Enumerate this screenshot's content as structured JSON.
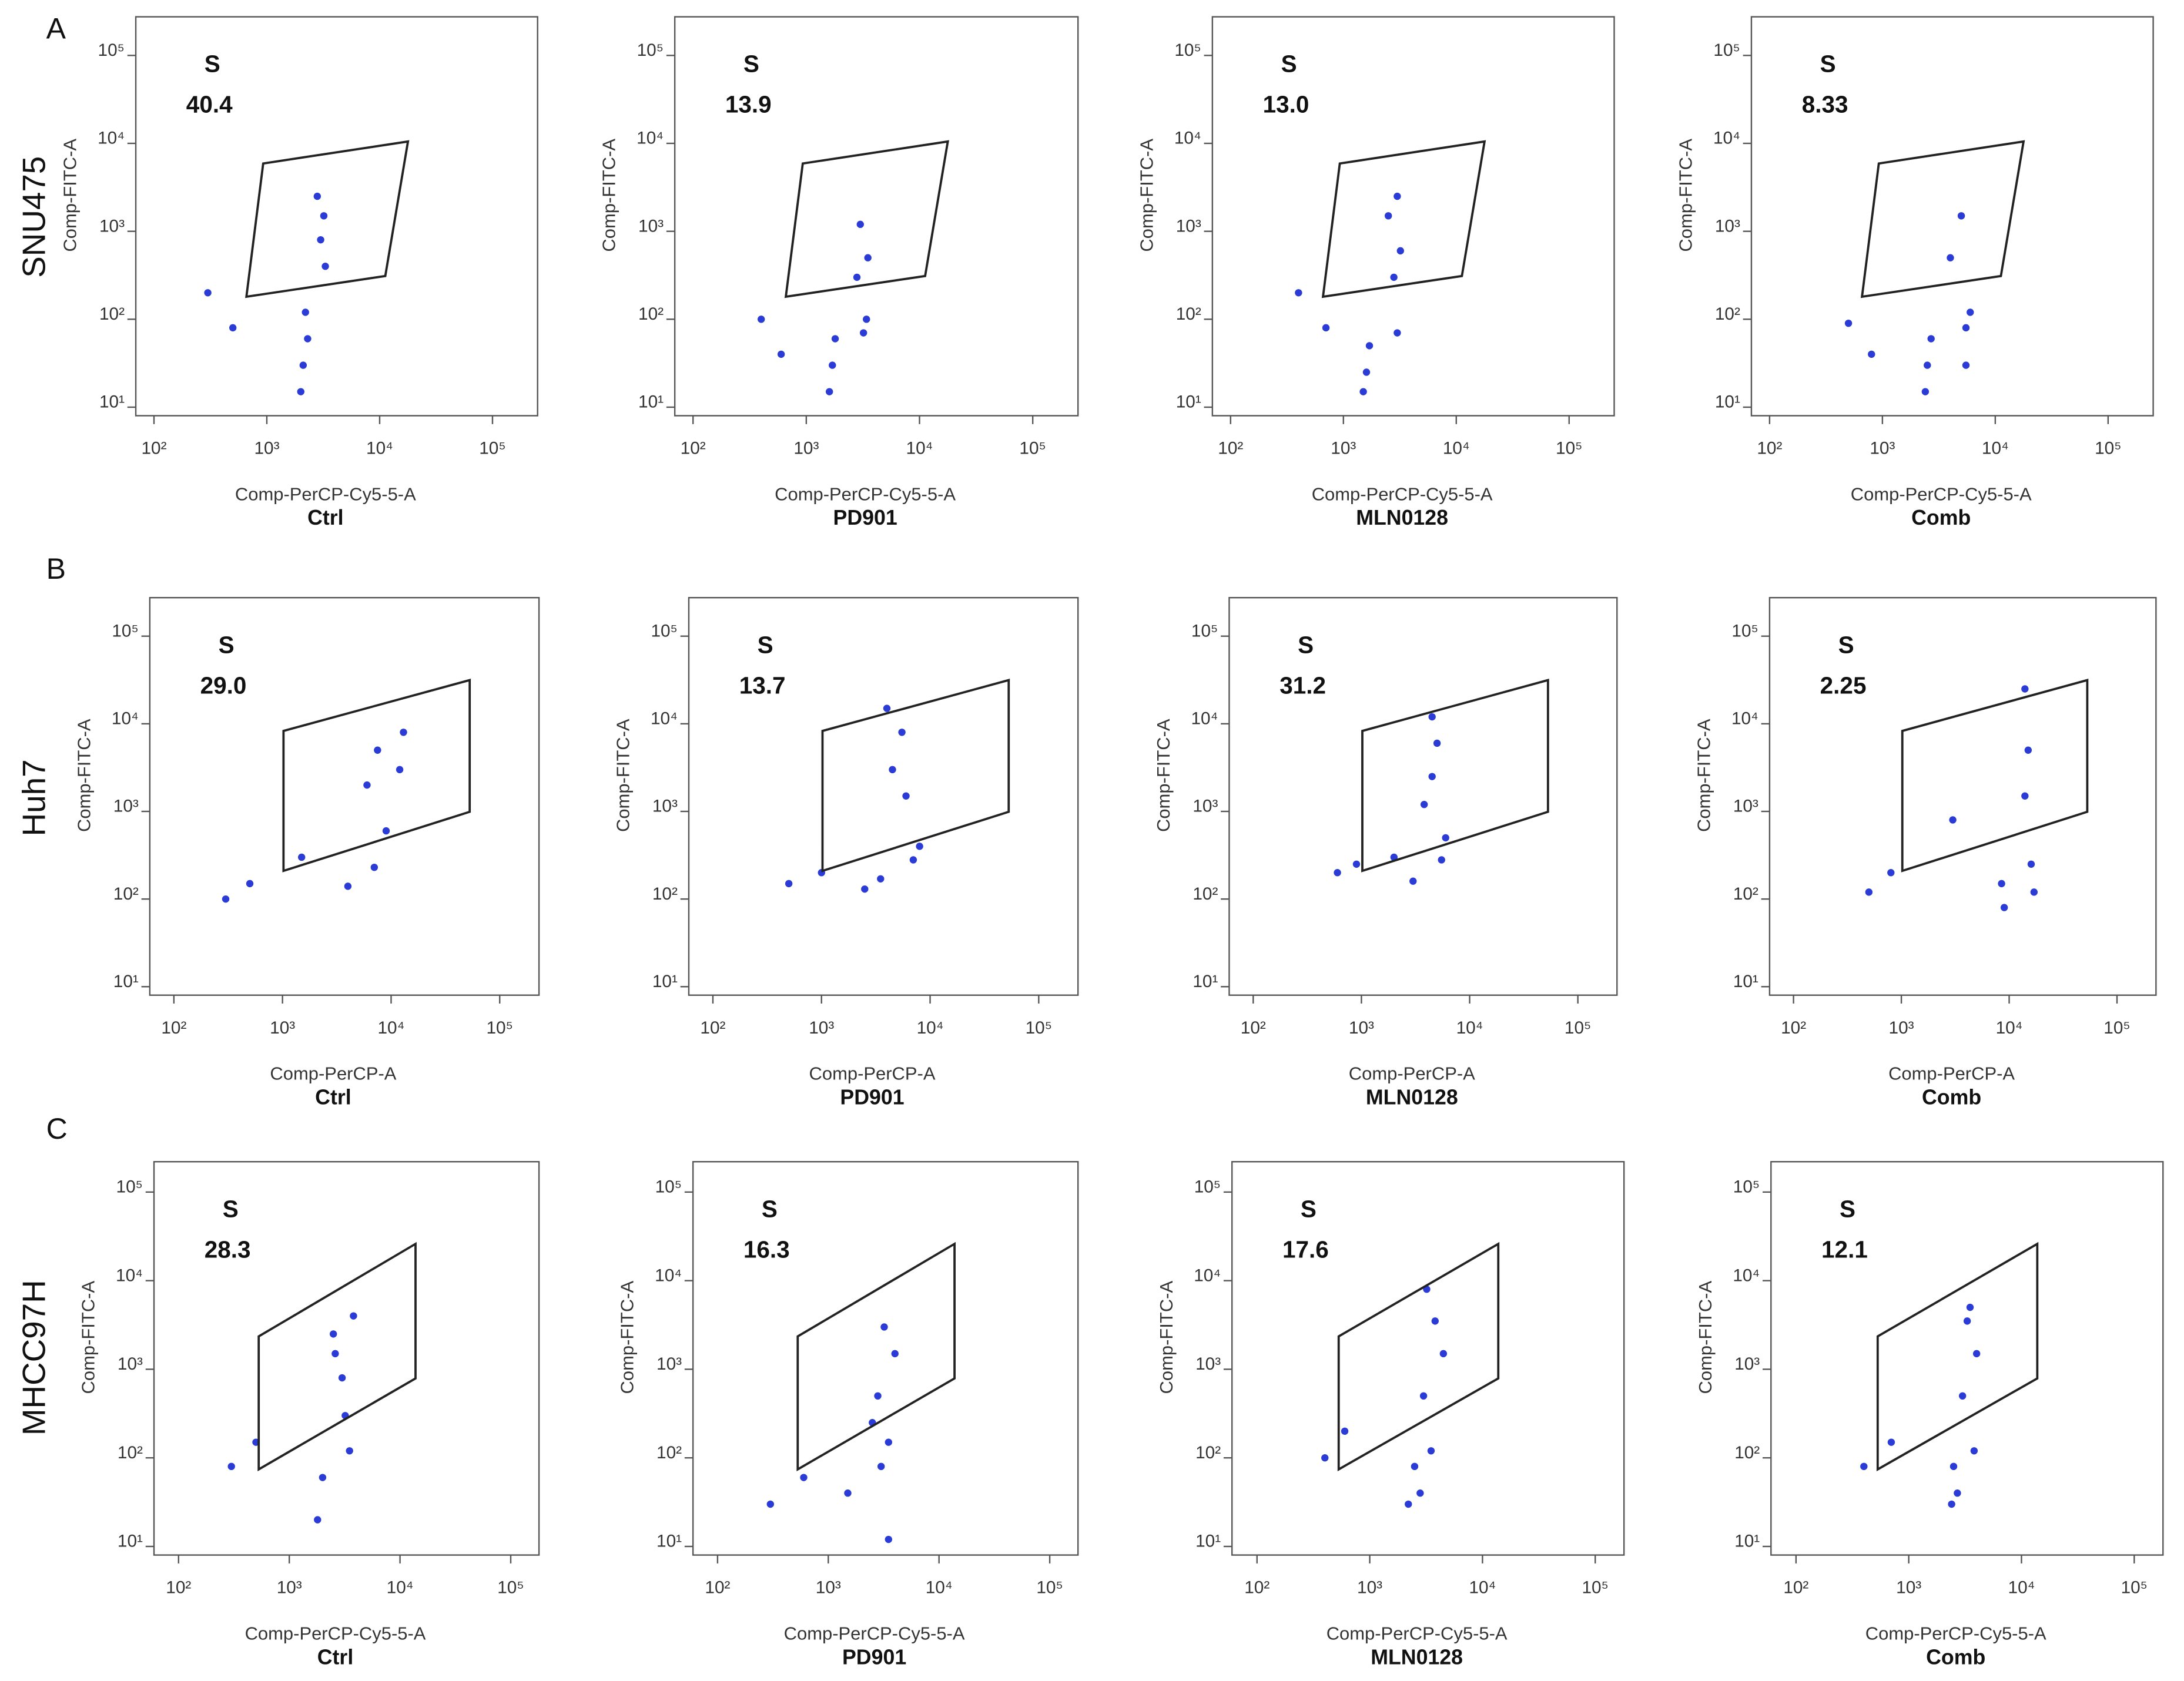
{
  "figure_labels": [
    {
      "letter": "A",
      "name": "SNU475"
    },
    {
      "letter": "B",
      "name": "Huh7"
    },
    {
      "letter": "C",
      "name": "MHCC97H"
    }
  ],
  "chart_data": [
    {
      "type": "scatter",
      "title": "Ctrl",
      "xlabel": "Comp-PerCP-Cy5-5-A",
      "ylabel": "Comp-FITC-A",
      "xscale": "log",
      "yscale": "log",
      "color": "#2a3bd6",
      "xlim": [
        69,
        251000
      ],
      "ylim": [
        8,
        275000
      ],
      "xticks": [
        {
          "value": 100,
          "label": "10²"
        },
        {
          "value": 1000,
          "label": "10³"
        },
        {
          "value": 10000,
          "label": "10⁴"
        },
        {
          "value": 100000,
          "label": "10⁵"
        }
      ],
      "yticks": [
        {
          "value": 10,
          "label": "10¹"
        },
        {
          "value": 100,
          "label": "10²"
        },
        {
          "value": 1000,
          "label": "10³"
        },
        {
          "value": 10000,
          "label": "10⁴"
        },
        {
          "value": 100000,
          "label": "10⁵"
        }
      ],
      "gate": {
        "name": "S",
        "value": 40.4,
        "x": [
          660,
          930,
          17800,
          11200
        ],
        "y": [
          180,
          5900,
          10500,
          310
        ]
      },
      "x": [
        2100,
        2300,
        2200,
        3000,
        3200,
        2800,
        3300,
        2000,
        500,
        300
      ],
      "y": [
        30,
        60,
        120,
        800,
        1500,
        2500,
        400,
        15,
        80,
        200
      ]
    },
    {
      "type": "scatter",
      "title": "PD901",
      "xlabel": "Comp-PerCP-Cy5-5-A",
      "ylabel": "Comp-FITC-A",
      "xscale": "log",
      "yscale": "log",
      "color": "#2a3bd6",
      "xlim": [
        69,
        251000
      ],
      "ylim": [
        8,
        275000
      ],
      "xticks": [
        {
          "value": 100,
          "label": "10²"
        },
        {
          "value": 1000,
          "label": "10³"
        },
        {
          "value": 10000,
          "label": "10⁴"
        },
        {
          "value": 100000,
          "label": "10⁵"
        }
      ],
      "yticks": [
        {
          "value": 10,
          "label": "10¹"
        },
        {
          "value": 100,
          "label": "10²"
        },
        {
          "value": 1000,
          "label": "10³"
        },
        {
          "value": 10000,
          "label": "10⁴"
        },
        {
          "value": 100000,
          "label": "10⁵"
        }
      ],
      "gate": {
        "name": "S",
        "value": 13.9,
        "x": [
          660,
          930,
          17800,
          11200
        ],
        "y": [
          180,
          5900,
          10500,
          310
        ]
      },
      "x": [
        1700,
        1800,
        3200,
        3500,
        3000,
        2800,
        1600,
        600,
        400,
        3400
      ],
      "y": [
        30,
        60,
        70,
        500,
        1200,
        300,
        15,
        40,
        100,
        100
      ]
    },
    {
      "type": "scatter",
      "title": "MLN0128",
      "xlabel": "Comp-PerCP-Cy5-5-A",
      "ylabel": "Comp-FITC-A",
      "xscale": "log",
      "yscale": "log",
      "color": "#2a3bd6",
      "xlim": [
        69,
        251000
      ],
      "ylim": [
        8,
        275000
      ],
      "xticks": [
        {
          "value": 100,
          "label": "10²"
        },
        {
          "value": 1000,
          "label": "10³"
        },
        {
          "value": 10000,
          "label": "10⁴"
        },
        {
          "value": 100000,
          "label": "10⁵"
        }
      ],
      "yticks": [
        {
          "value": 10,
          "label": "10¹"
        },
        {
          "value": 100,
          "label": "10²"
        },
        {
          "value": 1000,
          "label": "10³"
        },
        {
          "value": 10000,
          "label": "10⁴"
        },
        {
          "value": 100000,
          "label": "10⁵"
        }
      ],
      "gate": {
        "name": "S",
        "value": 13,
        "value_label": "13.0",
        "x": [
          660,
          930,
          17800,
          11200
        ],
        "y": [
          180,
          5900,
          10500,
          310
        ]
      },
      "x": [
        1600,
        1700,
        3000,
        3200,
        2500,
        3000,
        1500,
        700,
        400,
        2800
      ],
      "y": [
        25,
        50,
        70,
        600,
        1500,
        2500,
        15,
        80,
        200,
        300
      ]
    },
    {
      "type": "scatter",
      "title": "Comb",
      "xlabel": "Comp-PerCP-Cy5-5-A",
      "ylabel": "Comp-FITC-A",
      "xscale": "log",
      "yscale": "log",
      "color": "#2a3bd6",
      "xlim": [
        69,
        251000
      ],
      "ylim": [
        8,
        275000
      ],
      "xticks": [
        {
          "value": 100,
          "label": "10²"
        },
        {
          "value": 1000,
          "label": "10³"
        },
        {
          "value": 10000,
          "label": "10⁴"
        },
        {
          "value": 100000,
          "label": "10⁵"
        }
      ],
      "yticks": [
        {
          "value": 10,
          "label": "10¹"
        },
        {
          "value": 100,
          "label": "10²"
        },
        {
          "value": 1000,
          "label": "10³"
        },
        {
          "value": 10000,
          "label": "10⁴"
        },
        {
          "value": 100000,
          "label": "10⁵"
        }
      ],
      "gate": {
        "name": "S",
        "value": 8.33,
        "x": [
          660,
          930,
          17800,
          11200
        ],
        "y": [
          180,
          5900,
          10500,
          310
        ]
      },
      "x": [
        2500,
        2700,
        5500,
        6000,
        4000,
        5000,
        2400,
        800,
        500,
        5500
      ],
      "y": [
        30,
        60,
        80,
        120,
        500,
        1500,
        15,
        40,
        90,
        30
      ]
    },
    {
      "type": "scatter",
      "title": "Ctrl",
      "xlabel": "Comp-PerCP-A",
      "ylabel": "Comp-FITC-A",
      "xscale": "log",
      "yscale": "log",
      "color": "#2a3bd6",
      "xlim": [
        60,
        230000
      ],
      "ylim": [
        8,
        275000
      ],
      "xticks": [
        {
          "value": 100,
          "label": "10²"
        },
        {
          "value": 1000,
          "label": "10³"
        },
        {
          "value": 10000,
          "label": "10⁴"
        },
        {
          "value": 100000,
          "label": "10⁵"
        }
      ],
      "yticks": [
        {
          "value": 10,
          "label": "10¹"
        },
        {
          "value": 100,
          "label": "10²"
        },
        {
          "value": 1000,
          "label": "10³"
        },
        {
          "value": 10000,
          "label": "10⁴"
        },
        {
          "value": 100000,
          "label": "10⁵"
        }
      ],
      "gate": {
        "name": "S",
        "value": 29,
        "value_label": "29.0",
        "x": [
          1020,
          1020,
          53000,
          53000
        ],
        "y": [
          210,
          8300,
          31500,
          990
        ]
      },
      "x": [
        4000,
        7000,
        6000,
        7500,
        12000,
        13000,
        500,
        300,
        1500,
        9000
      ],
      "y": [
        140,
        230,
        2000,
        5000,
        3000,
        8000,
        150,
        100,
        300,
        600
      ]
    },
    {
      "type": "scatter",
      "title": "PD901",
      "xlabel": "Comp-PerCP-A",
      "ylabel": "Comp-FITC-A",
      "xscale": "log",
      "yscale": "log",
      "color": "#2a3bd6",
      "xlim": [
        60,
        230000
      ],
      "ylim": [
        8,
        275000
      ],
      "xticks": [
        {
          "value": 100,
          "label": "10²"
        },
        {
          "value": 1000,
          "label": "10³"
        },
        {
          "value": 10000,
          "label": "10⁴"
        },
        {
          "value": 100000,
          "label": "10⁵"
        }
      ],
      "yticks": [
        {
          "value": 10,
          "label": "10¹"
        },
        {
          "value": 100,
          "label": "10²"
        },
        {
          "value": 1000,
          "label": "10³"
        },
        {
          "value": 10000,
          "label": "10⁴"
        },
        {
          "value": 100000,
          "label": "10⁵"
        }
      ],
      "gate": {
        "name": "S",
        "value": 13.7,
        "x": [
          1020,
          1020,
          53000,
          53000
        ],
        "y": [
          210,
          8300,
          31500,
          990
        ]
      },
      "x": [
        3500,
        7000,
        4500,
        5500,
        6000,
        2500,
        1000,
        500,
        8000,
        4000
      ],
      "y": [
        170,
        280,
        3000,
        8000,
        1500,
        130,
        200,
        150,
        400,
        15000
      ]
    },
    {
      "type": "scatter",
      "title": "MLN0128",
      "xlabel": "Comp-PerCP-A",
      "ylabel": "Comp-FITC-A",
      "xscale": "log",
      "yscale": "log",
      "color": "#2a3bd6",
      "xlim": [
        60,
        230000
      ],
      "ylim": [
        8,
        275000
      ],
      "xticks": [
        {
          "value": 100,
          "label": "10²"
        },
        {
          "value": 1000,
          "label": "10³"
        },
        {
          "value": 10000,
          "label": "10⁴"
        },
        {
          "value": 100000,
          "label": "10⁵"
        }
      ],
      "yticks": [
        {
          "value": 10,
          "label": "10¹"
        },
        {
          "value": 100,
          "label": "10²"
        },
        {
          "value": 1000,
          "label": "10³"
        },
        {
          "value": 10000,
          "label": "10⁴"
        },
        {
          "value": 100000,
          "label": "10⁵"
        }
      ],
      "gate": {
        "name": "S",
        "value": 31.2,
        "x": [
          1020,
          1020,
          53000,
          53000
        ],
        "y": [
          210,
          8300,
          31500,
          990
        ]
      },
      "x": [
        3000,
        5500,
        4500,
        5000,
        3800,
        2000,
        900,
        600,
        6000,
        4500
      ],
      "y": [
        160,
        280,
        2500,
        6000,
        1200,
        300,
        250,
        200,
        500,
        12000
      ]
    },
    {
      "type": "scatter",
      "title": "Comb",
      "xlabel": "Comp-PerCP-A",
      "ylabel": "Comp-FITC-A",
      "xscale": "log",
      "yscale": "log",
      "color": "#2a3bd6",
      "xlim": [
        60,
        230000
      ],
      "ylim": [
        8,
        275000
      ],
      "xticks": [
        {
          "value": 100,
          "label": "10²"
        },
        {
          "value": 1000,
          "label": "10³"
        },
        {
          "value": 10000,
          "label": "10⁴"
        },
        {
          "value": 100000,
          "label": "10⁵"
        }
      ],
      "yticks": [
        {
          "value": 10,
          "label": "10¹"
        },
        {
          "value": 100,
          "label": "10²"
        },
        {
          "value": 1000,
          "label": "10³"
        },
        {
          "value": 10000,
          "label": "10⁴"
        },
        {
          "value": 100000,
          "label": "10⁵"
        }
      ],
      "gate": {
        "name": "S",
        "value": 2.25,
        "x": [
          1020,
          1020,
          53000,
          53000
        ],
        "y": [
          210,
          8300,
          31500,
          990
        ]
      },
      "x": [
        8500,
        16000,
        9000,
        17000,
        15000,
        14000,
        800,
        500,
        3000,
        14000
      ],
      "y": [
        150,
        250,
        80,
        120,
        5000,
        1500,
        200,
        120,
        800,
        25000
      ]
    },
    {
      "type": "scatter",
      "title": "Ctrl",
      "xlabel": "Comp-PerCP-Cy5-5-A",
      "ylabel": "Comp-FITC-A",
      "xscale": "log",
      "yscale": "log",
      "color": "#2a3bd6",
      "xlim": [
        60,
        180000
      ],
      "ylim": [
        8,
        220000
      ],
      "xticks": [
        {
          "value": 100,
          "label": "10²"
        },
        {
          "value": 1000,
          "label": "10³"
        },
        {
          "value": 10000,
          "label": "10⁴"
        },
        {
          "value": 100000,
          "label": "10⁵"
        }
      ],
      "yticks": [
        {
          "value": 10,
          "label": "10¹"
        },
        {
          "value": 100,
          "label": "10²"
        },
        {
          "value": 1000,
          "label": "10³"
        },
        {
          "value": 10000,
          "label": "10⁴"
        },
        {
          "value": 100000,
          "label": "10⁵"
        }
      ],
      "gate": {
        "name": "S",
        "value": 28.3,
        "x": [
          530,
          530,
          13800,
          13800
        ],
        "y": [
          74,
          2350,
          26000,
          790
        ]
      },
      "x": [
        2000,
        3500,
        3000,
        2500,
        3200,
        1800,
        500,
        300,
        2600,
        3800
      ],
      "y": [
        60,
        120,
        800,
        2500,
        300,
        20,
        150,
        80,
        1500,
        4000
      ]
    },
    {
      "type": "scatter",
      "title": "PD901",
      "xlabel": "Comp-PerCP-Cy5-5-A",
      "ylabel": "Comp-FITC-A",
      "xscale": "log",
      "yscale": "log",
      "color": "#2a3bd6",
      "xlim": [
        60,
        180000
      ],
      "ylim": [
        8,
        220000
      ],
      "xticks": [
        {
          "value": 100,
          "label": "10²"
        },
        {
          "value": 1000,
          "label": "10³"
        },
        {
          "value": 10000,
          "label": "10⁴"
        },
        {
          "value": 100000,
          "label": "10⁵"
        }
      ],
      "yticks": [
        {
          "value": 10,
          "label": "10¹"
        },
        {
          "value": 100,
          "label": "10²"
        },
        {
          "value": 1000,
          "label": "10³"
        },
        {
          "value": 10000,
          "label": "10⁴"
        },
        {
          "value": 100000,
          "label": "10⁵"
        }
      ],
      "gate": {
        "name": "S",
        "value": 16.3,
        "x": [
          530,
          530,
          13800,
          13800
        ],
        "y": [
          74,
          2350,
          26000,
          790
        ]
      },
      "x": [
        3000,
        3500,
        2800,
        4000,
        3200,
        600,
        300,
        1500,
        3500,
        2500
      ],
      "y": [
        80,
        150,
        500,
        1500,
        3000,
        60,
        30,
        40,
        12,
        250
      ]
    },
    {
      "type": "scatter",
      "title": "MLN0128",
      "xlabel": "Comp-PerCP-Cy5-5-A",
      "ylabel": "Comp-FITC-A",
      "xscale": "log",
      "yscale": "log",
      "color": "#2a3bd6",
      "xlim": [
        60,
        180000
      ],
      "ylim": [
        8,
        220000
      ],
      "xticks": [
        {
          "value": 100,
          "label": "10²"
        },
        {
          "value": 1000,
          "label": "10³"
        },
        {
          "value": 10000,
          "label": "10⁴"
        },
        {
          "value": 100000,
          "label": "10⁵"
        }
      ],
      "yticks": [
        {
          "value": 10,
          "label": "10¹"
        },
        {
          "value": 100,
          "label": "10²"
        },
        {
          "value": 1000,
          "label": "10³"
        },
        {
          "value": 10000,
          "label": "10⁴"
        },
        {
          "value": 100000,
          "label": "10⁵"
        }
      ],
      "gate": {
        "name": "S",
        "value": 17.6,
        "x": [
          530,
          530,
          13800,
          13800
        ],
        "y": [
          74,
          2350,
          26000,
          790
        ]
      },
      "x": [
        2500,
        3500,
        3000,
        4500,
        3800,
        2800,
        600,
        400,
        3200,
        2200
      ],
      "y": [
        80,
        120,
        500,
        1500,
        3500,
        40,
        200,
        100,
        8000,
        30
      ]
    },
    {
      "type": "scatter",
      "title": "Comb",
      "xlabel": "Comp-PerCP-Cy5-5-A",
      "ylabel": "Comp-FITC-A",
      "xscale": "log",
      "yscale": "log",
      "color": "#2a3bd6",
      "xlim": [
        60,
        180000
      ],
      "ylim": [
        8,
        220000
      ],
      "xticks": [
        {
          "value": 100,
          "label": "10²"
        },
        {
          "value": 1000,
          "label": "10³"
        },
        {
          "value": 10000,
          "label": "10⁴"
        },
        {
          "value": 100000,
          "label": "10⁵"
        }
      ],
      "yticks": [
        {
          "value": 10,
          "label": "10¹"
        },
        {
          "value": 100,
          "label": "10²"
        },
        {
          "value": 1000,
          "label": "10³"
        },
        {
          "value": 10000,
          "label": "10⁴"
        },
        {
          "value": 100000,
          "label": "10⁵"
        }
      ],
      "gate": {
        "name": "S",
        "value": 12.1,
        "x": [
          530,
          530,
          13800,
          13800
        ],
        "y": [
          74,
          2350,
          26000,
          790
        ]
      },
      "x": [
        2500,
        3800,
        3000,
        4000,
        3300,
        2700,
        700,
        400,
        3500,
        2400
      ],
      "y": [
        80,
        120,
        500,
        1500,
        3500,
        40,
        150,
        80,
        5000,
        30
      ]
    }
  ]
}
